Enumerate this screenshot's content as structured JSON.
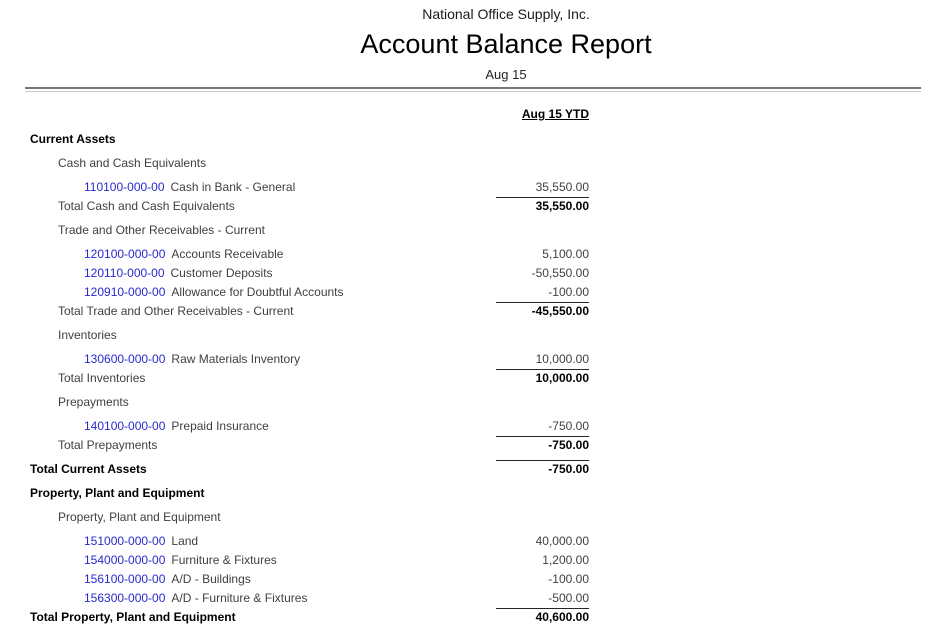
{
  "report": {
    "company": "National Office Supply, Inc.",
    "title": "Account Balance Report",
    "date": "Aug 15",
    "column_header": "Aug 15 YTD"
  },
  "colors": {
    "account_link": "#2929cc",
    "body_text": "#404040",
    "heading_text": "#000000"
  },
  "rows": [
    {
      "type": "section",
      "label": "Current Assets"
    },
    {
      "type": "group",
      "label": "Cash and Cash Equivalents",
      "gap": true
    },
    {
      "type": "account",
      "number": "110100-000-00",
      "name": "Cash in Bank - General",
      "value": "35,550.00",
      "gap": true
    },
    {
      "type": "total",
      "label": "Total Cash and Cash Equivalents",
      "value": "35,550.00"
    },
    {
      "type": "group",
      "label": "Trade and Other Receivables - Current",
      "gap": true
    },
    {
      "type": "account",
      "number": "120100-000-00",
      "name": "Accounts Receivable",
      "value": "5,100.00",
      "gap": true
    },
    {
      "type": "account",
      "number": "120110-000-00",
      "name": "Customer Deposits",
      "value": "-50,550.00"
    },
    {
      "type": "account",
      "number": "120910-000-00",
      "name": "Allowance for Doubtful Accounts",
      "value": "-100.00"
    },
    {
      "type": "total",
      "label": "Total Trade and Other Receivables - Current",
      "value": "-45,550.00"
    },
    {
      "type": "group",
      "label": "Inventories",
      "gap": true
    },
    {
      "type": "account",
      "number": "130600-000-00",
      "name": "Raw Materials Inventory",
      "value": "10,000.00",
      "gap": true
    },
    {
      "type": "total",
      "label": "Total Inventories",
      "value": "10,000.00"
    },
    {
      "type": "group",
      "label": "Prepayments",
      "gap": true
    },
    {
      "type": "account",
      "number": "140100-000-00",
      "name": "Prepaid Insurance",
      "value": "-750.00",
      "gap": true
    },
    {
      "type": "total",
      "label": "Total Prepayments",
      "value": "-750.00"
    },
    {
      "type": "sectiontotal",
      "label": "Total Current Assets",
      "value": "-750.00",
      "gap": true
    },
    {
      "type": "section",
      "label": "Property, Plant and Equipment",
      "gap": true
    },
    {
      "type": "group",
      "label": "Property, Plant and Equipment",
      "gap": true
    },
    {
      "type": "account",
      "number": "151000-000-00",
      "name": "Land",
      "value": "40,000.00",
      "gap": true
    },
    {
      "type": "account",
      "number": "154000-000-00",
      "name": "Furniture & Fixtures",
      "value": "1,200.00"
    },
    {
      "type": "account",
      "number": "156100-000-00",
      "name": "A/D - Buildings",
      "value": "-100.00"
    },
    {
      "type": "account",
      "number": "156300-000-00",
      "name": "A/D - Furniture & Fixtures",
      "value": "-500.00"
    },
    {
      "type": "sectiontotal",
      "label": "Total Property, Plant and Equipment",
      "value": "40,600.00"
    }
  ]
}
